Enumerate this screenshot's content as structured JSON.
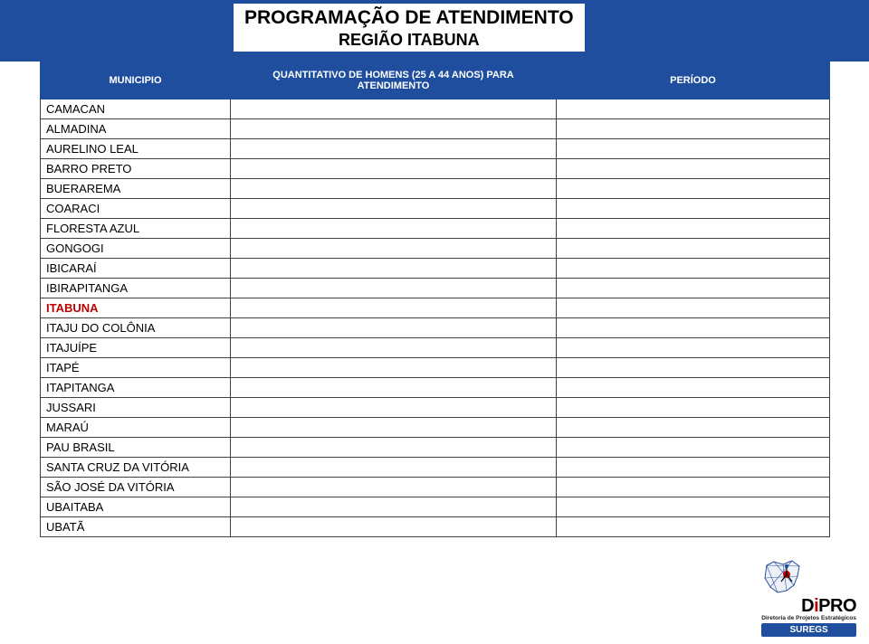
{
  "header": {
    "title_line1": "PROGRAMAÇÃO DE ATENDIMENTO",
    "title_line2": "REGIÃO ITABUNA"
  },
  "columns": {
    "col1": "MUNICIPIO",
    "col2": "QUANTITATIVO DE HOMENS (25 A 44 ANOS) PARA ATENDIMENTO",
    "col3": "PERÍODO"
  },
  "rows": [
    {
      "mun": "CAMACAN",
      "hl": false
    },
    {
      "mun": "ALMADINA",
      "hl": false
    },
    {
      "mun": "AURELINO LEAL",
      "hl": false
    },
    {
      "mun": "BARRO PRETO",
      "hl": false
    },
    {
      "mun": "BUERAREMA",
      "hl": false
    },
    {
      "mun": "COARACI",
      "hl": false
    },
    {
      "mun": "FLORESTA AZUL",
      "hl": false
    },
    {
      "mun": "GONGOGI",
      "hl": false
    },
    {
      "mun": "IBICARAÍ",
      "hl": false
    },
    {
      "mun": "IBIRAPITANGA",
      "hl": false
    },
    {
      "mun": "ITABUNA",
      "hl": true
    },
    {
      "mun": "ITAJU DO COLÔNIA",
      "hl": false
    },
    {
      "mun": "ITAJUÍPE",
      "hl": false
    },
    {
      "mun": "ITAPÉ",
      "hl": false
    },
    {
      "mun": "ITAPITANGA",
      "hl": false
    },
    {
      "mun": "JUSSARI",
      "hl": false
    },
    {
      "mun": "MARAÚ",
      "hl": false
    },
    {
      "mun": "PAU BRASIL",
      "hl": false
    },
    {
      "mun": "SANTA CRUZ DA VITÓRIA",
      "hl": false
    },
    {
      "mun": "SÃO JOSÉ DA VITÓRIA",
      "hl": false
    },
    {
      "mun": "UBAITABA",
      "hl": false
    },
    {
      "mun": "UBATÃ",
      "hl": false
    }
  ],
  "footer": {
    "dipro_d": "D",
    "dipro_i": "i",
    "dipro_pro": "PRO",
    "dipro_sub": "Diretoria de Projetos Estratégicos",
    "suregs": "SUREGS"
  },
  "colors": {
    "header_bg": "#1f4e9e",
    "highlight_text": "#c00000",
    "border": "#404040"
  }
}
